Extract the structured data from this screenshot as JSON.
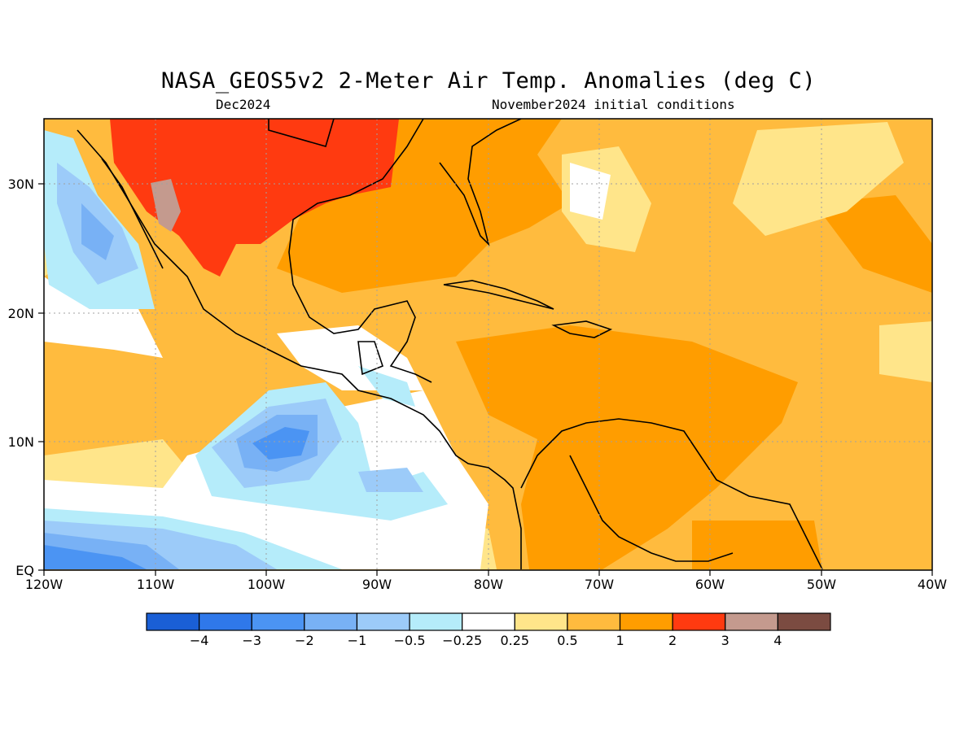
{
  "title": "NASA_GEOS5v2 2-Meter Air Temp. Anomalies (deg C)",
  "subtitle_left": "Dec2024",
  "subtitle_right": "November2024 initial conditions",
  "lon_labels": [
    "120W",
    "110W",
    "100W",
    "90W",
    "80W",
    "70W",
    "60W",
    "50W",
    "40W"
  ],
  "lat_labels": [
    "30N",
    "20N",
    "10N",
    "EQ"
  ],
  "colorbar": {
    "colors": [
      "#1a5fd6",
      "#2f78ea",
      "#4b94f3",
      "#78b1f5",
      "#9ccbf9",
      "#b5ecfa",
      "#ffffff",
      "#ffe58a",
      "#ffbb3e",
      "#ff9d00",
      "#ff3a10",
      "#c49a8e",
      "#7b4b41"
    ],
    "labels": [
      "-4",
      "-3",
      "-2",
      "-1",
      "-0.5",
      "-0.25",
      "0.25",
      "0.5",
      "1",
      "2",
      "3",
      "4"
    ]
  }
}
